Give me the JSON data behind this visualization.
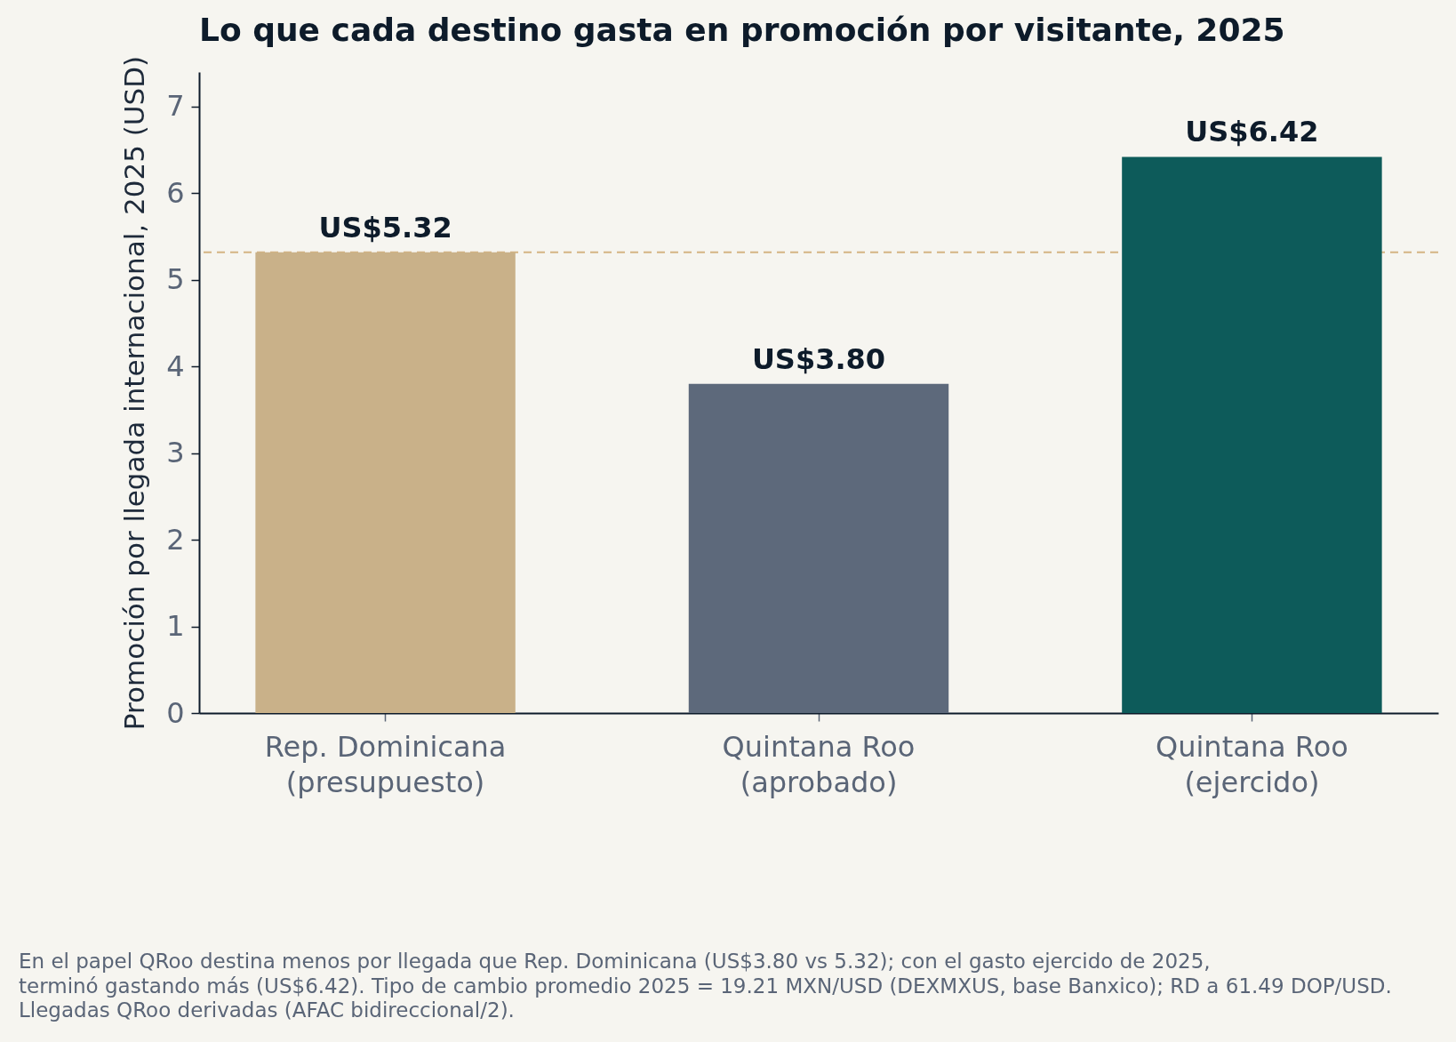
{
  "chart_data": {
    "type": "bar",
    "title": "Lo que cada destino gasta en promoción por visitante, 2025",
    "ylabel": "Promoción por llegada internacional, 2025 (USD)",
    "categories": [
      "Rep. Dominicana\n(presupuesto)",
      "Quintana Roo\n(aprobado)",
      "Quintana Roo\n(ejercido)"
    ],
    "values": [
      5.32,
      3.8,
      6.42
    ],
    "colors": [
      "#c9b189",
      "#5d697b",
      "#0d5b5a"
    ],
    "value_labels": [
      "US$5.32",
      "US$3.80",
      "US$6.42"
    ],
    "ylim": [
      0,
      7.4
    ],
    "yticks": [
      0,
      1,
      2,
      3,
      4,
      5,
      6,
      7
    ],
    "ref_lines": [
      {
        "axis": "y",
        "value": 5.32,
        "color": "#d4b483",
        "line_style": "dashed"
      }
    ],
    "annotations": [
      "En el papel QRoo destina menos por llegada que Rep. Dominicana (US$3.80 vs 5.32); con el gasto ejercido de 2025,\nterminó gastando más (US$6.42). Tipo de cambio promedio 2025 = 19.21 MXN/USD (DEXMXUS, base Banxico); RD a 61.49 DOP/USD.\nLlegadas QRoo derivadas (AFAC bidireccional/2)."
    ]
  }
}
